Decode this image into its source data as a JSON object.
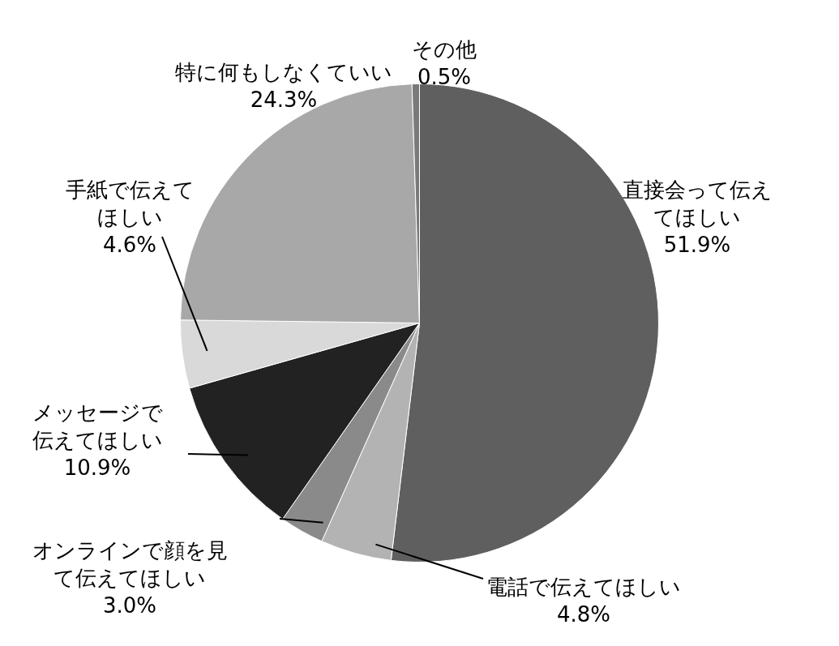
{
  "chart_data": {
    "type": "pie",
    "categories": [
      "直接会って伝えてほしい",
      "電話で伝えてほしい",
      "オンラインで顔を見て伝えてほしい",
      "メッセージで伝えてほしい",
      "手紙で伝えてほしい",
      "特に何もしなくていい",
      "その他"
    ],
    "values": [
      51.9,
      4.8,
      3.0,
      10.9,
      4.6,
      24.3,
      0.5
    ],
    "value_labels": [
      "51.9%",
      "4.8%",
      "3.0%",
      "10.9%",
      "4.6%",
      "24.3%",
      "0.5%"
    ],
    "colors": [
      "#5f5f5f",
      "#b3b3b3",
      "#8a8a8a",
      "#222222",
      "#d9d9d9",
      "#a8a8a8",
      "#7a7a7a"
    ]
  }
}
